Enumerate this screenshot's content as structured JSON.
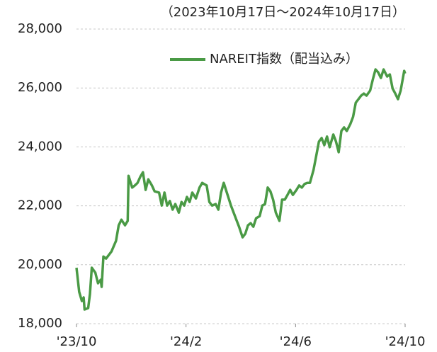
{
  "chart_data": {
    "type": "line",
    "subtitle": "（2023年10月17日～2024年10月17日）",
    "x": [
      0,
      3,
      6,
      8,
      9,
      13,
      15,
      17,
      21,
      24,
      27,
      28,
      30,
      33,
      36,
      39,
      44,
      47,
      50,
      54,
      57,
      58,
      62,
      65,
      68,
      71,
      74,
      77,
      80,
      84,
      87,
      92,
      95,
      98,
      101,
      104,
      107,
      110,
      114,
      117,
      120,
      123,
      126,
      129,
      133,
      137,
      140,
      145,
      148,
      151,
      155,
      158,
      161,
      164,
      167,
      172,
      175,
      178,
      181,
      185,
      188,
      191,
      194,
      197,
      200,
      204,
      207,
      210,
      213,
      216,
      219,
      222,
      226,
      229,
      232,
      235,
      238,
      241,
      245,
      248,
      251,
      254,
      257,
      260,
      264,
      267,
      270,
      273,
      276,
      279,
      282,
      286,
      289,
      292,
      295,
      298,
      301,
      305,
      308,
      311,
      314,
      317,
      320,
      323,
      327,
      330,
      333,
      336,
      339,
      342,
      346,
      349,
      352,
      355,
      358,
      361,
      365,
      366
    ],
    "series": [
      {
        "name": "NAREIT指数（配当込み）",
        "color": "#4a9a45",
        "values": [
          19900,
          19080,
          18770,
          18890,
          18480,
          18530,
          19010,
          19900,
          19730,
          19370,
          19490,
          19250,
          20280,
          20210,
          20330,
          20450,
          20810,
          21340,
          21530,
          21340,
          21490,
          23020,
          22620,
          22690,
          22780,
          22980,
          23140,
          22540,
          22900,
          22690,
          22490,
          22450,
          22010,
          22450,
          22010,
          22160,
          21870,
          22060,
          21770,
          22130,
          22010,
          22300,
          22130,
          22450,
          22250,
          22620,
          22780,
          22690,
          22130,
          22010,
          22060,
          21870,
          22450,
          22780,
          22490,
          22010,
          21770,
          21530,
          21290,
          20930,
          21050,
          21340,
          21410,
          21290,
          21580,
          21650,
          22010,
          22060,
          22620,
          22490,
          22210,
          21770,
          21490,
          22210,
          22210,
          22370,
          22540,
          22370,
          22540,
          22690,
          22620,
          22740,
          22780,
          22780,
          23220,
          23700,
          24180,
          24300,
          24060,
          24350,
          23990,
          24420,
          24180,
          23820,
          24540,
          24660,
          24540,
          24780,
          25020,
          25500,
          25620,
          25740,
          25810,
          25740,
          25910,
          26290,
          26630,
          26530,
          26340,
          26630,
          26390,
          26460,
          25980,
          25810,
          25620,
          25910,
          26580,
          26490
        ]
      }
    ],
    "xlim": [
      0,
      366
    ],
    "xticks": [
      {
        "value": 0,
        "label": "'23/10"
      },
      {
        "value": 122,
        "label": "'24/2"
      },
      {
        "value": 244,
        "label": "'24/6"
      },
      {
        "value": 366,
        "label": "'24/10"
      }
    ],
    "ylim": [
      18000,
      28000
    ],
    "yticks": [
      {
        "value": 18000,
        "label": "18,000"
      },
      {
        "value": 20000,
        "label": "20,000"
      },
      {
        "value": 22000,
        "label": "22,000"
      },
      {
        "value": 24000,
        "label": "24,000"
      },
      {
        "value": 26000,
        "label": "26,000"
      },
      {
        "value": 28000,
        "label": "28,000"
      }
    ],
    "grid": true
  }
}
